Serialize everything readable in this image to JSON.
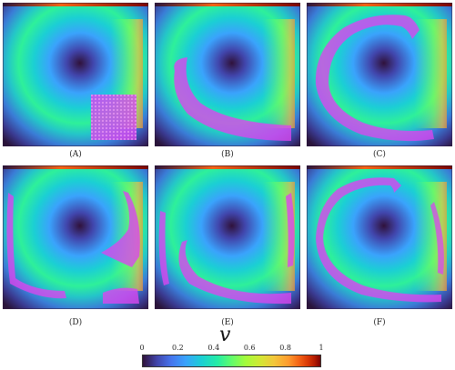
{
  "panels": [
    {
      "id": "A",
      "caption": "(A)"
    },
    {
      "id": "B",
      "caption": "(B)"
    },
    {
      "id": "C",
      "caption": "(C)"
    },
    {
      "id": "D",
      "caption": "(D)"
    },
    {
      "id": "E",
      "caption": "(E)"
    },
    {
      "id": "F",
      "caption": "(F)"
    }
  ],
  "colorbar": {
    "symbol": "v",
    "ticks": [
      "0",
      "0.2",
      "0.4",
      "0.6",
      "0.8",
      "1"
    ],
    "colormap": "turbo",
    "particle_color": "#d946ef"
  }
}
